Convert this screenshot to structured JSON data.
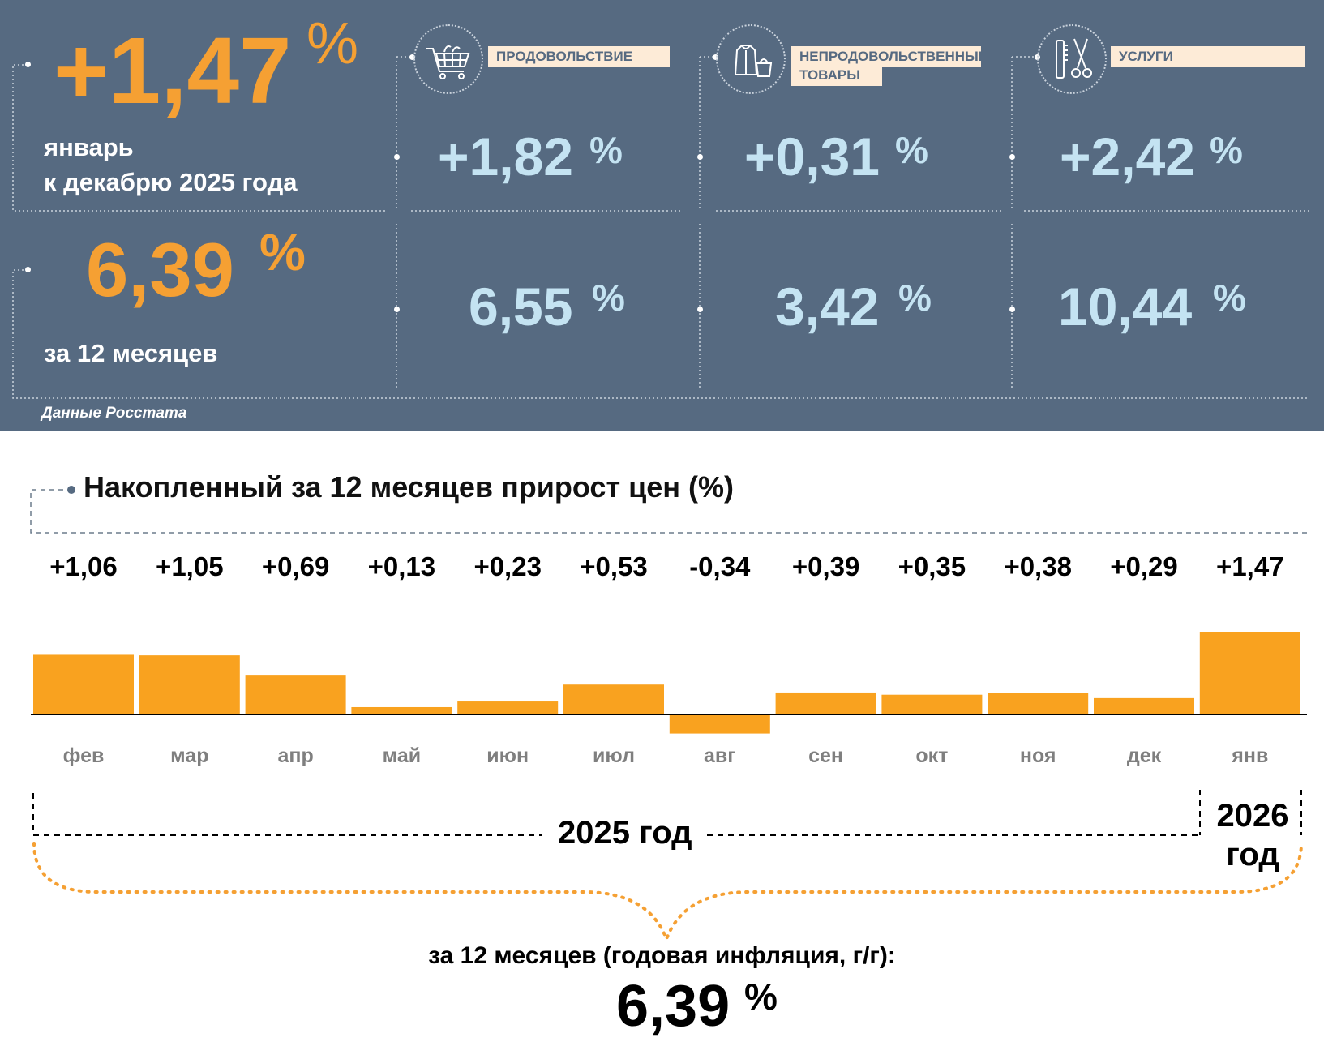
{
  "header": {
    "monthly": {
      "value": "+1,47",
      "unit": "%",
      "caption_line1": "январь",
      "caption_line2": "к декабрю 2025 года"
    },
    "annual": {
      "value": "6,39",
      "unit": "%",
      "caption": "за 12 месяцев"
    },
    "categories": [
      {
        "label": "ПРОДОВОЛЬСТВИЕ",
        "label_line2": "",
        "monthly": "+1,82",
        "annual": "6,55",
        "unit": "%",
        "icon": "shopping-cart-icon"
      },
      {
        "label": "НЕПРОДОВОЛЬСТВЕННЫЕ",
        "label_line2": "ТОВАРЫ",
        "monthly": "+0,31",
        "annual": "3,42",
        "unit": "%",
        "icon": "clothes-bag-icon"
      },
      {
        "label": "УСЛУГИ",
        "label_line2": "",
        "monthly": "+2,42",
        "annual": "10,44",
        "unit": "%",
        "icon": "comb-scissors-icon"
      }
    ],
    "source": "Данные Росстата"
  },
  "chart_title": "Накопленный за 12 месяцев прирост цен (%)",
  "chart_data": {
    "type": "bar",
    "title": "Накопленный за 12 месяцев прирост цен (%)",
    "categories": [
      "фев",
      "мар",
      "апр",
      "май",
      "июн",
      "июл",
      "авг",
      "сен",
      "окт",
      "ноя",
      "дек",
      "янв"
    ],
    "values": [
      1.06,
      1.05,
      0.69,
      0.13,
      0.23,
      0.53,
      -0.34,
      0.39,
      0.35,
      0.38,
      0.29,
      1.47
    ],
    "value_labels": [
      "+1,06",
      "+1,05",
      "+0,69",
      "+0,13",
      "+0,23",
      "+0,53",
      "-0,34",
      "+0,39",
      "+0,35",
      "+0,38",
      "+0,29",
      "+1,47"
    ],
    "color": "#f9a21f",
    "xlabel": "",
    "ylabel": "",
    "ylim": [
      -0.34,
      1.47
    ],
    "grid": false
  },
  "years": {
    "y2025": "2025 год",
    "y2026_line1": "2026",
    "y2026_line2": "год"
  },
  "summary": {
    "caption": "за 12 месяцев (годовая инфляция, г/г):",
    "value": "6,39",
    "unit": "%"
  },
  "colors": {
    "panel": "#566a81",
    "orange": "#f5a033",
    "light_blue": "#c4e3f2",
    "bar": "#f9a21f",
    "label_bg": "#fdebd7"
  }
}
